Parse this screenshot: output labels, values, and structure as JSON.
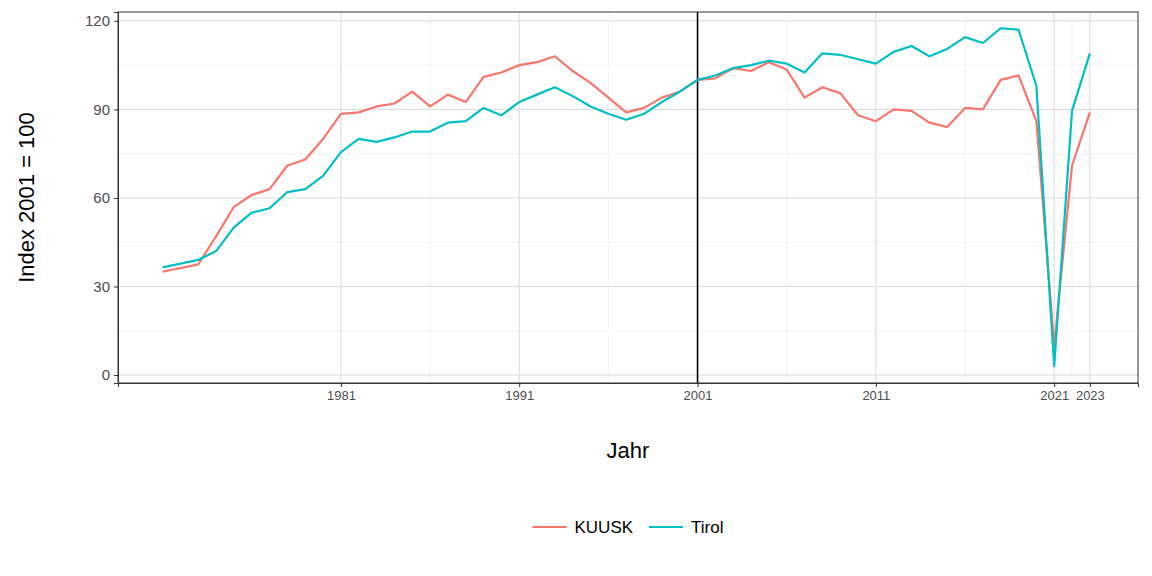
{
  "chart_data": {
    "type": "line",
    "x_label": "Jahr",
    "y_label": "Index 2001 = 100",
    "x": [
      1971,
      1973,
      1974,
      1975,
      1976,
      1977,
      1978,
      1979,
      1980,
      1981,
      1982,
      1983,
      1984,
      1985,
      1986,
      1987,
      1988,
      1989,
      1990,
      1991,
      1992,
      1993,
      1994,
      1995,
      1996,
      1997,
      1998,
      1999,
      2000,
      2001,
      2002,
      2003,
      2004,
      2005,
      2006,
      2007,
      2008,
      2009,
      2010,
      2011,
      2012,
      2013,
      2014,
      2015,
      2016,
      2017,
      2018,
      2019,
      2020,
      2021,
      2022,
      2023
    ],
    "series": [
      {
        "name": "KUUSK",
        "color": "#F8766D",
        "values": [
          35,
          37.5,
          47,
          57,
          61,
          63,
          71,
          73,
          80,
          88.5,
          89,
          91,
          92,
          96,
          91,
          95,
          92.5,
          101,
          102.5,
          105,
          106,
          108,
          103,
          99,
          94,
          89,
          90.5,
          94,
          96,
          100,
          100.5,
          104,
          103,
          106,
          103.5,
          94,
          97.5,
          95.5,
          88,
          86,
          90,
          89.5,
          85.5,
          84,
          90.5,
          90,
          100,
          101.5,
          86,
          10,
          71,
          89
        ]
      },
      {
        "name": "Tirol",
        "color": "#00BFC4",
        "values": [
          36.5,
          39,
          42,
          50,
          55,
          56.5,
          62,
          63,
          67.5,
          75.5,
          80,
          79,
          80.5,
          82.5,
          82.5,
          85.5,
          86,
          90.5,
          88,
          92.5,
          95,
          97.5,
          94.5,
          91,
          88.5,
          86.5,
          88.5,
          92.5,
          96,
          100,
          101.5,
          104,
          105,
          106.5,
          105.5,
          102.5,
          109,
          108.5,
          107,
          105.5,
          109.5,
          111.5,
          108,
          110.5,
          114.5,
          112.5,
          117.5,
          117,
          98,
          3,
          89.5,
          109
        ]
      }
    ],
    "xlim": [
      1968.5,
      2025.7
    ],
    "xticks": [
      1981,
      1991,
      2001,
      2011,
      2021,
      2023
    ],
    "ylim": [
      -2.7,
      123
    ],
    "yticks": [
      0,
      30,
      60,
      90,
      120
    ],
    "reference_x": 2001,
    "grid": true,
    "legend": "bottom"
  }
}
